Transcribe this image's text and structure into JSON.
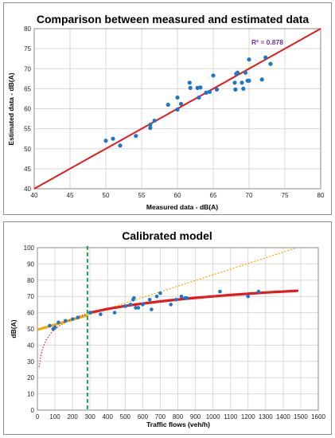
{
  "chart_data": [
    {
      "type": "scatter",
      "title": "Comparison between measured and estimated data",
      "xlabel": "Measured data - dB(A)",
      "ylabel": "Estimated data - dB(A)",
      "xlim": [
        40,
        80
      ],
      "ylim": [
        40,
        80
      ],
      "xticks": [
        "40",
        "45",
        "50",
        "55",
        "60",
        "65",
        "70",
        "75",
        "80"
      ],
      "yticks": [
        "40",
        "45",
        "50",
        "55",
        "60",
        "65",
        "70",
        "75",
        "80"
      ],
      "grid": true,
      "annotation": "R² = 0.878",
      "colors": {
        "points": "#1f77c4",
        "line": "#e41a1c"
      },
      "series": [
        {
          "kind": "points",
          "x": [
            50.0,
            51.0,
            52.0,
            54.2,
            56.2,
            56.2,
            56.8,
            58.7,
            60.0,
            60.0,
            60.5,
            61.7,
            61.8,
            62.8,
            63.0,
            63.2,
            64.0,
            64.5,
            65.0,
            65.5,
            68.0,
            68.1,
            68.2,
            68.4,
            69.0,
            69.2,
            69.5,
            69.8,
            70.0,
            70.0,
            71.8,
            72.3,
            73.0
          ],
          "y": [
            52.0,
            52.5,
            50.8,
            53.2,
            55.2,
            56.0,
            57.0,
            61.0,
            59.8,
            62.8,
            61.2,
            66.5,
            65.2,
            65.2,
            62.8,
            65.3,
            64.0,
            64.2,
            68.3,
            64.8,
            66.5,
            64.8,
            68.7,
            69.0,
            66.5,
            65.0,
            69.0,
            67.0,
            72.3,
            67.0,
            67.3,
            72.8,
            71.2
          ]
        },
        {
          "kind": "line",
          "x": [
            40,
            80
          ],
          "y": [
            40,
            80
          ]
        }
      ]
    },
    {
      "type": "line",
      "title": "Calibrated model",
      "xlabel": "Traffic flows (veh/h)",
      "ylabel": "dB(A)",
      "xlim": [
        0,
        1600
      ],
      "ylim": [
        0,
        100
      ],
      "xticks": [
        "0",
        "100",
        "200",
        "300",
        "400",
        "500",
        "600",
        "700",
        "800",
        "900",
        "1000",
        "1100",
        "1200",
        "1300",
        "1400",
        "1500",
        "1600"
      ],
      "yticks": [
        "0",
        "10",
        "20",
        "30",
        "40",
        "50",
        "60",
        "70",
        "80",
        "90",
        "100"
      ],
      "grid": true,
      "colors": {
        "points": "#1f77c4",
        "fit_red": "#e41a1c",
        "low_flow": "#f5a800",
        "threshold": "#19a84a"
      },
      "threshold_x": 285,
      "series": [
        {
          "kind": "points",
          "x": [
            70,
            90,
            100,
            120,
            160,
            200,
            230,
            300,
            360,
            440,
            500,
            530,
            545,
            550,
            560,
            575,
            600,
            640,
            650,
            680,
            700,
            760,
            790,
            820,
            840,
            850,
            1040,
            1200,
            1260
          ],
          "y": [
            52,
            50,
            51,
            54,
            55,
            56,
            57,
            60,
            59,
            60,
            64,
            65,
            68,
            69,
            63,
            63,
            65,
            68,
            62,
            70,
            72,
            65,
            68,
            70,
            69,
            69,
            73,
            70,
            73
          ]
        },
        {
          "kind": "curve-red-solid",
          "x": [
            300,
            400,
            500,
            600,
            700,
            800,
            900,
            1000,
            1100,
            1200,
            1300,
            1400,
            1480
          ],
          "y": [
            60.0,
            62.3,
            64.1,
            65.6,
            66.9,
            68.1,
            69.1,
            70.0,
            70.9,
            71.6,
            72.4,
            73.0,
            73.5
          ]
        },
        {
          "kind": "curve-red-dotted",
          "x": [
            10,
            20,
            30,
            50,
            80,
            120,
            170,
            230,
            285
          ],
          "y": [
            26.5,
            33.7,
            38.0,
            43.2,
            47.9,
            51.6,
            54.8,
            57.5,
            59.4
          ]
        },
        {
          "kind": "line-orange-solid",
          "x": [
            0,
            285
          ],
          "y": [
            49.5,
            58.4
          ]
        },
        {
          "kind": "line-orange-dotted",
          "x": [
            285,
            1480
          ],
          "y": [
            58.4,
            100
          ]
        }
      ]
    }
  ]
}
